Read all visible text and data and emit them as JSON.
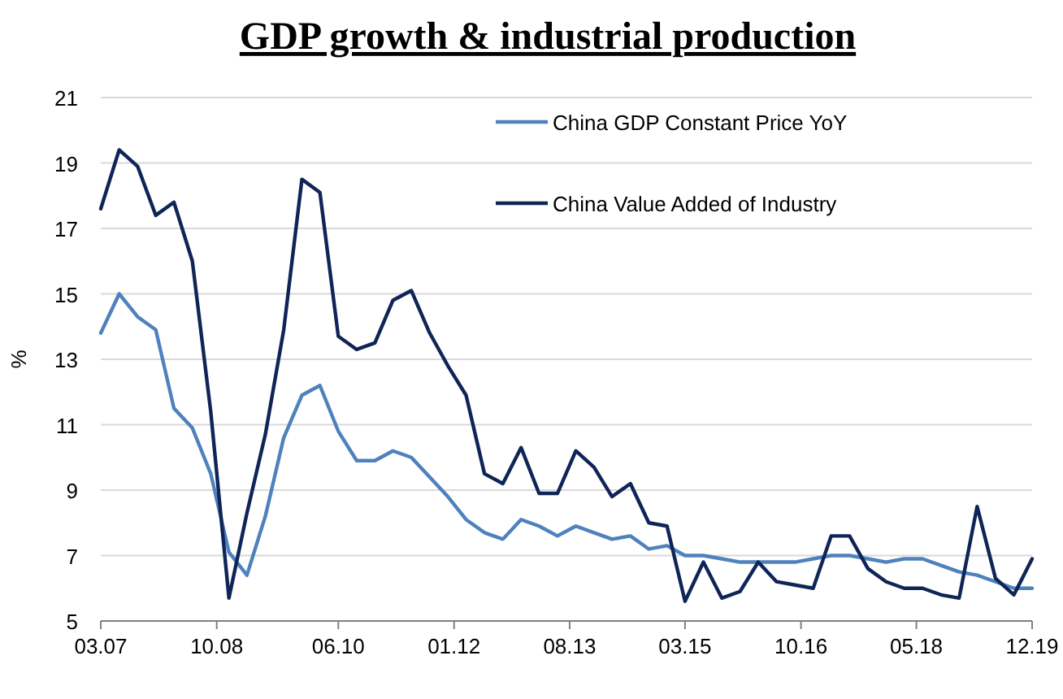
{
  "chart_data": {
    "type": "line",
    "title": "GDP growth & industrial production",
    "ylabel": "%",
    "x": [
      "2007-03",
      "2007-06",
      "2007-09",
      "2007-12",
      "2008-03",
      "2008-06",
      "2008-09",
      "2008-12",
      "2009-03",
      "2009-06",
      "2009-09",
      "2009-12",
      "2010-03",
      "2010-06",
      "2010-09",
      "2010-12",
      "2011-03",
      "2011-06",
      "2011-09",
      "2011-12",
      "2012-03",
      "2012-06",
      "2012-09",
      "2012-12",
      "2013-03",
      "2013-06",
      "2013-09",
      "2013-12",
      "2014-03",
      "2014-06",
      "2014-09",
      "2014-12",
      "2015-03",
      "2015-06",
      "2015-09",
      "2015-12",
      "2016-03",
      "2016-06",
      "2016-09",
      "2016-12",
      "2017-03",
      "2017-06",
      "2017-09",
      "2017-12",
      "2018-03",
      "2018-06",
      "2018-09",
      "2018-12",
      "2019-03",
      "2019-06",
      "2019-09",
      "2019-12"
    ],
    "series": [
      {
        "name": "China GDP Constant Price YoY",
        "color": "#4f81bd",
        "values": [
          13.8,
          15.0,
          14.3,
          13.9,
          11.5,
          10.9,
          9.5,
          7.1,
          6.4,
          8.2,
          10.6,
          11.9,
          12.2,
          10.8,
          9.9,
          9.9,
          10.2,
          10.0,
          9.4,
          8.8,
          8.1,
          7.7,
          7.5,
          8.1,
          7.9,
          7.6,
          7.9,
          7.7,
          7.5,
          7.6,
          7.2,
          7.3,
          7.0,
          7.0,
          6.9,
          6.8,
          6.8,
          6.8,
          6.8,
          6.9,
          7.0,
          7.0,
          6.9,
          6.8,
          6.9,
          6.9,
          6.7,
          6.5,
          6.4,
          6.2,
          6.0,
          6.0
        ]
      },
      {
        "name": "China Value Added of Industry",
        "color": "#0f2557",
        "values": [
          17.6,
          19.4,
          18.9,
          17.4,
          17.8,
          16.0,
          11.4,
          5.7,
          8.3,
          10.7,
          13.9,
          18.5,
          18.1,
          13.7,
          13.3,
          13.5,
          14.8,
          15.1,
          13.8,
          12.8,
          11.9,
          9.5,
          9.2,
          10.3,
          8.9,
          8.9,
          10.2,
          9.7,
          8.8,
          9.2,
          8.0,
          7.9,
          5.6,
          6.8,
          5.7,
          5.9,
          6.8,
          6.2,
          6.1,
          6.0,
          7.6,
          7.6,
          6.6,
          6.2,
          6.0,
          6.0,
          5.8,
          5.7,
          8.5,
          6.3,
          5.8,
          6.9
        ]
      }
    ],
    "xlim": [
      "2007-03",
      "2019-12"
    ],
    "xticks": [
      {
        "value": "2007-03",
        "label": "03.07"
      },
      {
        "value": "2008-10",
        "label": "10.08"
      },
      {
        "value": "2010-06",
        "label": "06.10"
      },
      {
        "value": "2012-01",
        "label": "01.12"
      },
      {
        "value": "2013-08",
        "label": "08.13"
      },
      {
        "value": "2015-03",
        "label": "03.15"
      },
      {
        "value": "2016-10",
        "label": "10.16"
      },
      {
        "value": "2018-05",
        "label": "05.18"
      },
      {
        "value": "2019-12",
        "label": "12.19"
      }
    ],
    "ylim": [
      5,
      21
    ],
    "yticks": [
      5,
      7,
      9,
      11,
      13,
      15,
      17,
      19,
      21
    ],
    "grid": "y",
    "legend": "top right",
    "marker": "none",
    "line_style": "solid"
  }
}
